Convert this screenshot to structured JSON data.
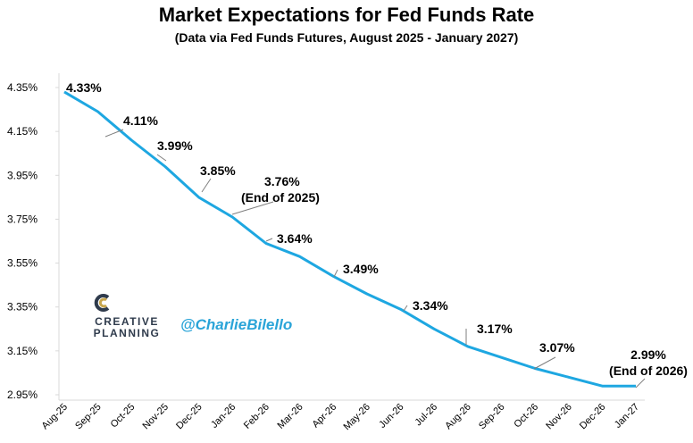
{
  "chart_data": {
    "type": "line",
    "title": "Market Expectations for Fed Funds Rate",
    "subtitle": "(Data via Fed Funds Futures, August 2025 - January 2027)",
    "xlabel": "",
    "ylabel": "",
    "ylim": [
      2.95,
      4.35
    ],
    "yticks": [
      "4.35%",
      "4.15%",
      "3.95%",
      "3.75%",
      "3.55%",
      "3.35%",
      "3.15%",
      "2.95%"
    ],
    "ytick_values": [
      4.35,
      4.15,
      3.95,
      3.75,
      3.55,
      3.35,
      3.15,
      2.95
    ],
    "grid": false,
    "line_color": "#1ea7e1",
    "categories": [
      "Aug-25",
      "Sep-25",
      "Oct-25",
      "Nov-25",
      "Dec-25",
      "Jan-26",
      "Feb-26",
      "Mar-26",
      "Apr-26",
      "May-26",
      "Jun-26",
      "Jul-26",
      "Aug-26",
      "Sep-26",
      "Oct-26",
      "Nov-26",
      "Dec-26",
      "Jan-27"
    ],
    "values": [
      4.33,
      4.24,
      4.11,
      3.99,
      3.85,
      3.76,
      3.64,
      3.58,
      3.49,
      3.41,
      3.34,
      3.25,
      3.17,
      3.12,
      3.07,
      3.03,
      2.99,
      2.99
    ],
    "annotations": [
      {
        "index": 0,
        "text": "4.33%"
      },
      {
        "index": 2,
        "text": "4.11%"
      },
      {
        "index": 3,
        "text": "3.99%"
      },
      {
        "index": 4,
        "text": "3.85%"
      },
      {
        "index": 5,
        "text": "3.76%",
        "text2": "(End of 2025)"
      },
      {
        "index": 6,
        "text": "3.64%"
      },
      {
        "index": 8,
        "text": "3.49%"
      },
      {
        "index": 10,
        "text": "3.34%"
      },
      {
        "index": 12,
        "text": "3.17%"
      },
      {
        "index": 14,
        "text": "3.07%"
      },
      {
        "index": 17,
        "text": "2.99%",
        "text2": "(End of 2026)"
      }
    ]
  },
  "branding": {
    "logo_line1": "CREATIVE",
    "logo_line2": "PLANNING",
    "logo_icon": "creative-planning-logo-icon",
    "handle": "@CharlieBilello",
    "handle_color": "#2aa4d8"
  }
}
